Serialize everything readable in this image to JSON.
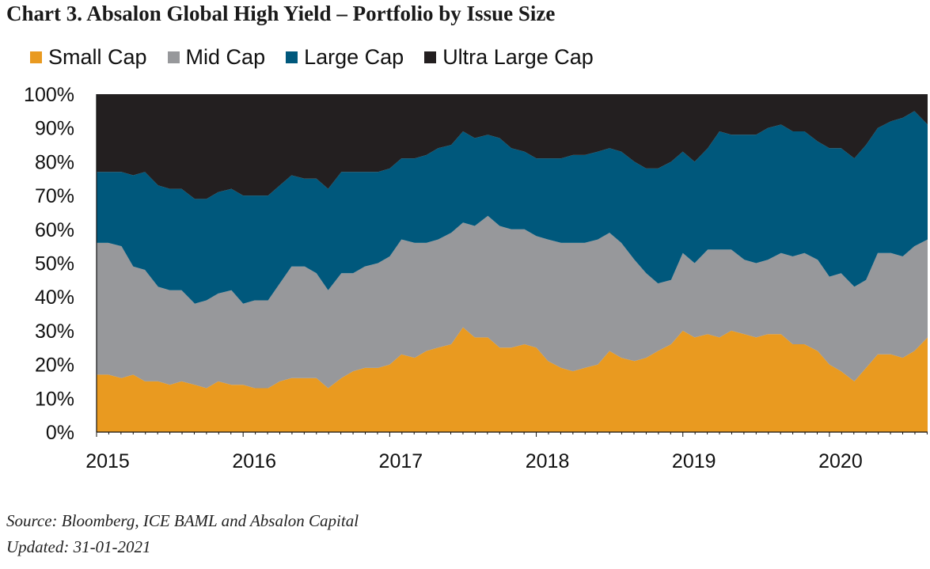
{
  "title": "Chart 3. Absalon Global High Yield – Portfolio by Issue Size",
  "source": "Source: Bloomberg, ICE BAML and Absalon Capital",
  "updated": "Updated: 31-01-2021",
  "chart_data": {
    "type": "area",
    "stacked": true,
    "title": "Chart 3. Absalon Global High Yield – Portfolio by Issue Size",
    "xlabel": "",
    "ylabel": "",
    "xlim": [
      2015.0,
      2020.67
    ],
    "ylim": [
      0,
      100
    ],
    "x_ticks": [
      "2015",
      "2016",
      "2017",
      "2018",
      "2019",
      "2020"
    ],
    "y_ticks": [
      "0%",
      "10%",
      "20%",
      "30%",
      "40%",
      "50%",
      "60%",
      "70%",
      "80%",
      "90%",
      "100%"
    ],
    "grid": false,
    "legend_position": "top",
    "x": [
      2015.0,
      2015.08,
      2015.17,
      2015.25,
      2015.33,
      2015.42,
      2015.5,
      2015.58,
      2015.67,
      2015.75,
      2015.83,
      2015.92,
      2016.0,
      2016.08,
      2016.17,
      2016.25,
      2016.33,
      2016.42,
      2016.5,
      2016.58,
      2016.67,
      2016.75,
      2016.83,
      2016.92,
      2017.0,
      2017.08,
      2017.17,
      2017.25,
      2017.33,
      2017.42,
      2017.5,
      2017.58,
      2017.67,
      2017.75,
      2017.83,
      2017.92,
      2018.0,
      2018.08,
      2018.17,
      2018.25,
      2018.33,
      2018.42,
      2018.5,
      2018.58,
      2018.67,
      2018.75,
      2018.83,
      2018.92,
      2019.0,
      2019.08,
      2019.17,
      2019.25,
      2019.33,
      2019.42,
      2019.5,
      2019.58,
      2019.67,
      2019.75,
      2019.83,
      2019.92,
      2020.0,
      2020.08,
      2020.17,
      2020.25,
      2020.33,
      2020.42,
      2020.5,
      2020.58,
      2020.67
    ],
    "series": [
      {
        "name": "Small Cap",
        "color": "#E99A20",
        "values": [
          17,
          17,
          16,
          17,
          15,
          15,
          14,
          15,
          14,
          13,
          15,
          14,
          14,
          13,
          13,
          15,
          16,
          16,
          16,
          13,
          16,
          18,
          19,
          19,
          20,
          23,
          22,
          24,
          25,
          26,
          31,
          28,
          28,
          25,
          25,
          26,
          25,
          21,
          19,
          18,
          19,
          20,
          24,
          22,
          21,
          22,
          24,
          26,
          30,
          28,
          29,
          28,
          30,
          29,
          28,
          29,
          29,
          26,
          26,
          24,
          20,
          18,
          15,
          19,
          23,
          23,
          22,
          24,
          28
        ]
      },
      {
        "name": "Mid Cap",
        "color": "#97989B",
        "values": [
          39,
          39,
          39,
          32,
          33,
          28,
          28,
          27,
          24,
          26,
          26,
          28,
          24,
          26,
          26,
          29,
          33,
          33,
          31,
          29,
          31,
          29,
          30,
          31,
          32,
          34,
          34,
          32,
          32,
          33,
          31,
          33,
          36,
          36,
          35,
          34,
          33,
          36,
          37,
          38,
          37,
          37,
          35,
          34,
          30,
          25,
          20,
          19,
          23,
          22,
          25,
          26,
          24,
          22,
          22,
          22,
          24,
          26,
          27,
          27,
          26,
          29,
          28,
          26,
          30,
          30,
          30,
          31,
          29
        ]
      },
      {
        "name": "Large Cap",
        "color": "#00587C",
        "values": [
          21,
          21,
          22,
          27,
          29,
          30,
          30,
          30,
          31,
          30,
          30,
          30,
          32,
          31,
          31,
          29,
          27,
          26,
          28,
          30,
          30,
          30,
          28,
          27,
          26,
          24,
          25,
          26,
          27,
          26,
          27,
          26,
          24,
          26,
          24,
          23,
          23,
          24,
          25,
          26,
          26,
          26,
          25,
          27,
          29,
          31,
          34,
          35,
          30,
          30,
          30,
          35,
          34,
          37,
          38,
          39,
          38,
          37,
          36,
          35,
          38,
          37,
          38,
          40,
          37,
          39,
          41,
          40,
          34
        ]
      },
      {
        "name": "Ultra Large Cap",
        "color": "#231F20",
        "values": [
          23,
          23,
          23,
          24,
          23,
          27,
          28,
          28,
          31,
          31,
          29,
          28,
          30,
          30,
          30,
          27,
          24,
          25,
          25,
          28,
          23,
          23,
          23,
          23,
          22,
          19,
          19,
          18,
          16,
          15,
          11,
          13,
          12,
          13,
          16,
          17,
          19,
          19,
          19,
          18,
          18,
          17,
          16,
          17,
          20,
          22,
          22,
          20,
          17,
          20,
          16,
          11,
          12,
          12,
          12,
          10,
          9,
          11,
          11,
          14,
          16,
          16,
          19,
          15,
          10,
          8,
          7,
          5,
          9
        ]
      }
    ]
  }
}
